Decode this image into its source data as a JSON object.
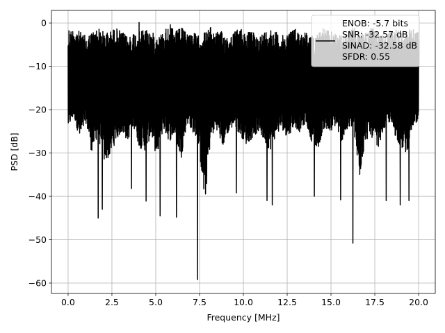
{
  "chart_data": {
    "type": "line",
    "title": "",
    "xlabel": "Frequency [MHz]",
    "ylabel": "PSD [dB]",
    "xlim": [
      -0.95,
      20.95
    ],
    "ylim": [
      -62.4,
      2.9
    ],
    "xticks": [
      0.0,
      2.5,
      5.0,
      7.5,
      10.0,
      12.5,
      15.0,
      17.5,
      20.0
    ],
    "xtick_labels": [
      "0.0",
      "2.5",
      "5.0",
      "7.5",
      "10.0",
      "12.5",
      "15.0",
      "17.5",
      "20.0"
    ],
    "yticks": [
      0,
      -10,
      -20,
      -30,
      -40,
      -50,
      -60
    ],
    "ytick_labels": [
      "0",
      "−10",
      "−20",
      "−30",
      "−40",
      "−50",
      "−60"
    ],
    "grid": true,
    "line_color": "#000000",
    "legend": {
      "placement": "top-right",
      "entries": [
        "ENOB: -5.7 bits",
        "SNR: -32.57 dB",
        "SINAD: -32.58 dB",
        "SFDR: 0.55"
      ]
    },
    "series": [
      {
        "x_start": 0.0,
        "x_end": 20.0,
        "upper_envelope": [
          -2,
          -1,
          -2,
          -3,
          -2,
          -1,
          -2,
          -2,
          -1,
          -2,
          -3,
          -2,
          -2,
          -1,
          -2,
          -3,
          -2,
          0,
          -2,
          -1,
          -2,
          -2,
          -3,
          -2,
          -1,
          -2,
          -2,
          -3,
          -2,
          -1,
          -2,
          -2,
          -3,
          -2,
          -1,
          -2,
          -3,
          -2,
          -1,
          -2,
          -2,
          -3,
          -2,
          -1,
          -2,
          -2,
          -3,
          -2,
          -1,
          -2,
          -2,
          -1,
          -2,
          -3,
          -2,
          -1,
          -2,
          -2,
          -1,
          -2
        ],
        "lower_envelope": [
          -34,
          -30,
          -38,
          -32,
          -42,
          -36,
          -45,
          -43,
          -38,
          -35,
          -38,
          -33,
          -40,
          -41,
          -36,
          -44,
          -34,
          -38,
          -36,
          -44,
          -32,
          -35,
          -39,
          -59.2,
          -37,
          -34,
          -40,
          -35,
          -33,
          -36,
          -39,
          -37,
          -35,
          -38,
          -41,
          -36,
          -34,
          -37,
          -33,
          -35,
          -32,
          -38,
          -41,
          -34,
          -36,
          -33,
          -38,
          -35,
          -33,
          -50.8,
          -38,
          -36,
          -41,
          -35,
          -32,
          -36,
          -40,
          -42,
          -33,
          -34
        ],
        "spikes": [
          {
            "x": 1.72,
            "y": -45.0
          },
          {
            "x": 1.95,
            "y": -43.0
          },
          {
            "x": 3.62,
            "y": -38.2
          },
          {
            "x": 4.45,
            "y": -41.1
          },
          {
            "x": 5.25,
            "y": -44.5
          },
          {
            "x": 6.18,
            "y": -44.8
          },
          {
            "x": 7.38,
            "y": -59.2
          },
          {
            "x": 9.6,
            "y": -39.2
          },
          {
            "x": 11.35,
            "y": -41.0
          },
          {
            "x": 11.65,
            "y": -42.0
          },
          {
            "x": 14.05,
            "y": -40.0
          },
          {
            "x": 15.55,
            "y": -40.8
          },
          {
            "x": 16.25,
            "y": -50.8
          },
          {
            "x": 18.15,
            "y": -41.0
          },
          {
            "x": 18.95,
            "y": -42.0
          },
          {
            "x": 19.45,
            "y": -41.0
          }
        ],
        "upper_spikes": [
          {
            "x": 4.05,
            "y": 0.1
          },
          {
            "x": 0.05,
            "y": -1.8
          },
          {
            "x": 19.95,
            "y": -2.2
          }
        ]
      }
    ]
  }
}
